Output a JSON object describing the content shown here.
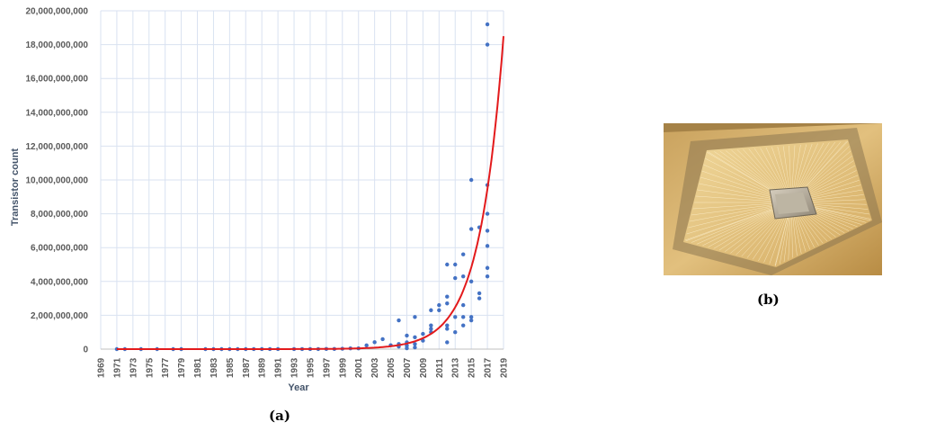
{
  "captions": {
    "a": "(a)",
    "b": "(b)"
  },
  "photo": {
    "icon": "gold-microchip-package-photo"
  },
  "colors": {
    "points": "#4472c4",
    "trend": "#e31a1c",
    "grid": "#d9e2f1"
  },
  "chart_data": {
    "type": "scatter",
    "xlabel": "Year",
    "ylabel": "Transistor count",
    "xlim": [
      1969,
      2019
    ],
    "ylim": [
      0,
      20000000000
    ],
    "xticks": [
      1969,
      1971,
      1973,
      1975,
      1977,
      1979,
      1981,
      1983,
      1985,
      1987,
      1989,
      1991,
      1993,
      1995,
      1997,
      1999,
      2001,
      2003,
      2005,
      2007,
      2009,
      2011,
      2013,
      2015,
      2017,
      2019
    ],
    "yticks": [
      0,
      2000000000,
      4000000000,
      6000000000,
      8000000000,
      10000000000,
      12000000000,
      14000000000,
      16000000000,
      18000000000,
      20000000000
    ],
    "ytick_labels": [
      "0",
      "2,000,000,000",
      "4,000,000,000",
      "6,000,000,000",
      "8,000,000,000",
      "10,000,000,000",
      "12,000,000,000",
      "14,000,000,000",
      "16,000,000,000",
      "18,000,000,000",
      "20,000,000,000"
    ],
    "grid": true,
    "points": [
      [
        1971,
        2300
      ],
      [
        1972,
        3500
      ],
      [
        1974,
        6000
      ],
      [
        1976,
        6500
      ],
      [
        1978,
        29000
      ],
      [
        1979,
        29000
      ],
      [
        1982,
        134000
      ],
      [
        1983,
        134000
      ],
      [
        1984,
        190000
      ],
      [
        1985,
        275000
      ],
      [
        1986,
        275000
      ],
      [
        1987,
        300000
      ],
      [
        1988,
        1000000
      ],
      [
        1989,
        1200000
      ],
      [
        1990,
        1200000
      ],
      [
        1991,
        1200000
      ],
      [
        1993,
        3100000
      ],
      [
        1994,
        3100000
      ],
      [
        1995,
        5500000
      ],
      [
        1996,
        5500000
      ],
      [
        1997,
        7500000
      ],
      [
        1998,
        9500000
      ],
      [
        1999,
        22000000
      ],
      [
        2000,
        42000000
      ],
      [
        2001,
        45000000
      ],
      [
        2002,
        220000000
      ],
      [
        2003,
        410000000
      ],
      [
        2004,
        590000000
      ],
      [
        2005,
        230000000
      ],
      [
        2006,
        1700000000
      ],
      [
        2006,
        300000000
      ],
      [
        2006,
        150000000
      ],
      [
        2007,
        800000000
      ],
      [
        2007,
        400000000
      ],
      [
        2007,
        200000000
      ],
      [
        2007,
        50000000
      ],
      [
        2008,
        1900000000
      ],
      [
        2008,
        700000000
      ],
      [
        2008,
        300000000
      ],
      [
        2008,
        100000000
      ],
      [
        2009,
        900000000
      ],
      [
        2009,
        500000000
      ],
      [
        2010,
        2300000000
      ],
      [
        2010,
        1400000000
      ],
      [
        2010,
        1200000000
      ],
      [
        2010,
        1000000000
      ],
      [
        2011,
        2600000000
      ],
      [
        2011,
        2300000000
      ],
      [
        2012,
        5000000000
      ],
      [
        2012,
        3100000000
      ],
      [
        2012,
        2700000000
      ],
      [
        2012,
        1400000000
      ],
      [
        2012,
        1200000000
      ],
      [
        2012,
        400000000
      ],
      [
        2013,
        5000000000
      ],
      [
        2013,
        4200000000
      ],
      [
        2013,
        1900000000
      ],
      [
        2013,
        1000000000
      ],
      [
        2014,
        5600000000
      ],
      [
        2014,
        4300000000
      ],
      [
        2014,
        2600000000
      ],
      [
        2014,
        1900000000
      ],
      [
        2014,
        1400000000
      ],
      [
        2015,
        10000000000
      ],
      [
        2015,
        7100000000
      ],
      [
        2015,
        4000000000
      ],
      [
        2015,
        1900000000
      ],
      [
        2015,
        1700000000
      ],
      [
        2016,
        7200000000
      ],
      [
        2016,
        3300000000
      ],
      [
        2016,
        3000000000
      ],
      [
        2017,
        19200000000
      ],
      [
        2017,
        18000000000
      ],
      [
        2017,
        9700000000
      ],
      [
        2017,
        8000000000
      ],
      [
        2017,
        7000000000
      ],
      [
        2017,
        6100000000
      ],
      [
        2017,
        4800000000
      ],
      [
        2017,
        4300000000
      ]
    ],
    "trendline": {
      "type": "exponential",
      "x0": 1971,
      "y0": 1900,
      "x1": 2019,
      "y1": 18500000000
    }
  }
}
